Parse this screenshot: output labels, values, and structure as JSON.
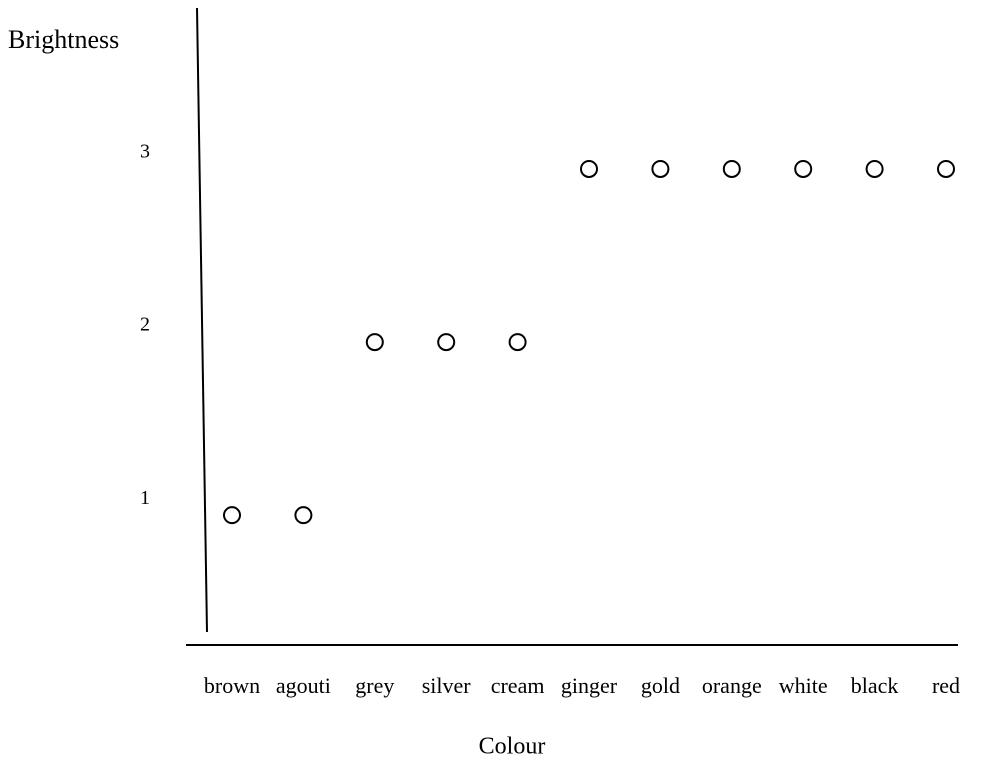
{
  "chart_data": {
    "type": "scatter",
    "y_label": "Brightness",
    "x_label": "Colour",
    "categories": [
      "brown",
      "agouti",
      "grey",
      "silver",
      "cream",
      "ginger",
      "gold",
      "orange",
      "white",
      "black",
      "red"
    ],
    "values": [
      1,
      1,
      2,
      2,
      2,
      3,
      3,
      3,
      3,
      3,
      3
    ],
    "color": "#000000",
    "ylim": [
      0.25,
      3.93
    ],
    "yticks": [
      1,
      2,
      3
    ],
    "grid": false
  }
}
